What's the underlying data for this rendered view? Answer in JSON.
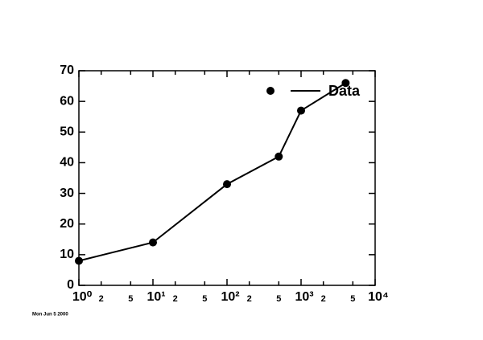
{
  "chart_data": {
    "type": "line",
    "x": [
      1,
      10,
      100,
      500,
      1000,
      4000
    ],
    "series": [
      {
        "name": "Data",
        "color": "#000000",
        "values": [
          8,
          14,
          33,
          42,
          57,
          66
        ]
      }
    ],
    "xscale": "log",
    "xlim": [
      1,
      10000
    ],
    "xticks": [
      {
        "value": 1,
        "label": "10⁰"
      },
      2,
      5,
      {
        "value": 10,
        "label": "10¹"
      },
      {
        "value": 20,
        "label": "2"
      },
      {
        "value": 50,
        "label": "5"
      },
      {
        "value": 100,
        "label": "10²"
      },
      {
        "value": 200,
        "label": "2"
      },
      {
        "value": 500,
        "label": "5"
      },
      {
        "value": 1000,
        "label": "10³"
      },
      {
        "value": 2000,
        "label": "2"
      },
      {
        "value": 5000,
        "label": "5"
      },
      {
        "value": 10000,
        "label": "10⁴"
      }
    ],
    "ylim": [
      0,
      70
    ],
    "yticks": [
      0,
      10,
      20,
      30,
      40,
      50,
      60,
      70
    ],
    "legend": "upper right",
    "footer": "Mon Jun 5 2000"
  }
}
